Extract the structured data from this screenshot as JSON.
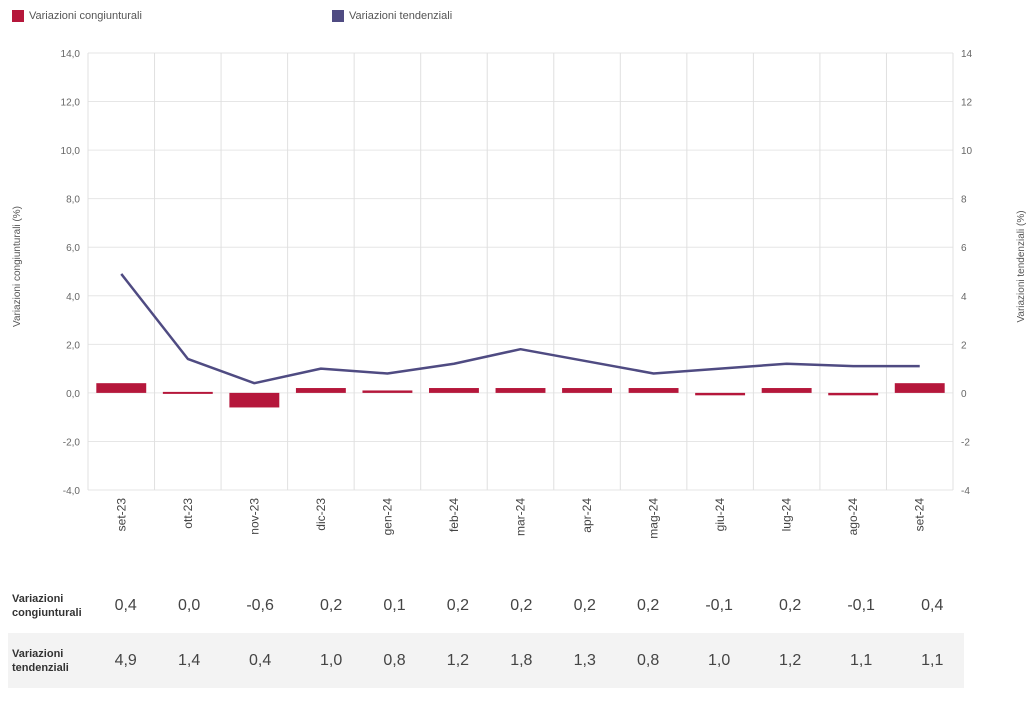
{
  "legend": [
    {
      "label": "Variazioni congiunturali",
      "color": "#b5173b"
    },
    {
      "label": "Variazioni tendenziali",
      "color": "#4f4b82"
    }
  ],
  "chart_data": {
    "type": "bar+line",
    "categories": [
      "set-23",
      "ott-23",
      "nov-23",
      "dic-23",
      "gen-24",
      "feb-24",
      "mar-24",
      "apr-24",
      "mag-24",
      "giu-24",
      "lug-24",
      "ago-24",
      "set-24"
    ],
    "series": [
      {
        "name": "Variazioni congiunturali",
        "type": "bar",
        "axis": "left",
        "color": "#b5173b",
        "values": [
          0.4,
          0.0,
          -0.6,
          0.2,
          0.1,
          0.2,
          0.2,
          0.2,
          0.2,
          -0.1,
          0.2,
          -0.1,
          0.4
        ]
      },
      {
        "name": "Variazioni tendenziali",
        "type": "line",
        "axis": "right",
        "color": "#4f4b82",
        "values": [
          4.9,
          1.4,
          0.4,
          1.0,
          0.8,
          1.2,
          1.8,
          1.3,
          0.8,
          1.0,
          1.2,
          1.1,
          1.1
        ]
      }
    ],
    "ylim": [
      -4,
      14
    ],
    "y_left_ticks": [
      "14,0",
      "12,0",
      "10,0",
      "8,0",
      "6,0",
      "4,0",
      "2,0",
      "0,0",
      "-2,0",
      "-4,0"
    ],
    "y_right_ticks": [
      "14",
      "12",
      "10",
      "8",
      "6",
      "4",
      "2",
      "0",
      "-2",
      "-4"
    ],
    "y_tick_values": [
      14,
      12,
      10,
      8,
      6,
      4,
      2,
      0,
      -2,
      -4
    ],
    "ylabel_left": "Variazioni congiunturali (%)",
    "ylabel_right": "Variazioni tendenziali (%)",
    "grid": true
  },
  "table": {
    "rows": [
      {
        "label": "Variazioni congiunturali",
        "values": [
          "0,4",
          "0,0",
          "-0,6",
          "0,2",
          "0,1",
          "0,2",
          "0,2",
          "0,2",
          "0,2",
          "-0,1",
          "0,2",
          "-0,1",
          "0,4"
        ]
      },
      {
        "label": "Variazioni tendenziali",
        "values": [
          "4,9",
          "1,4",
          "0,4",
          "1,0",
          "0,8",
          "1,2",
          "1,8",
          "1,3",
          "0,8",
          "1,0",
          "1,2",
          "1,1",
          "1,1"
        ]
      }
    ]
  }
}
